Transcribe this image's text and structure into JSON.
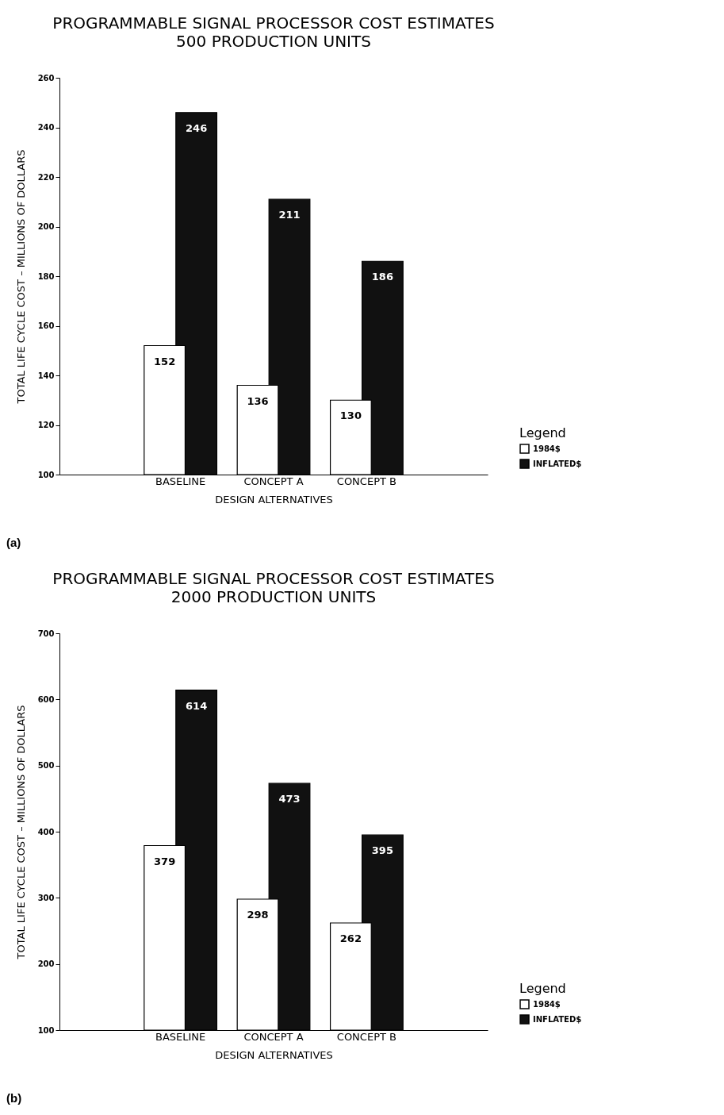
{
  "chart_data": [
    {
      "type": "bar",
      "title": "PROGRAMMABLE SIGNAL PROCESSOR COST ESTIMATES",
      "subtitle": "500 PRODUCTION UNITS",
      "xlabel": "DESIGN ALTERNATIVES",
      "ylabel": "TOTAL LIFE CYCLE COST – MILLIONS OF DOLLARS",
      "legend_title": "Legend",
      "annotations": [
        "(a)"
      ],
      "categories": [
        "BASELINE",
        "CONCEPT A",
        "CONCEPT B"
      ],
      "series": [
        {
          "name": "1984$",
          "color": "#ffffff",
          "values": [
            152,
            136,
            130
          ]
        },
        {
          "name": "INFLATED$",
          "color": "#111111",
          "values": [
            246,
            211,
            186
          ]
        }
      ],
      "ylim": [
        100,
        260
      ],
      "yticks": [
        100,
        120,
        140,
        160,
        180,
        200,
        220,
        240,
        260
      ],
      "data_labels": true,
      "legend": "bottom right"
    },
    {
      "type": "bar",
      "title": "PROGRAMMABLE SIGNAL PROCESSOR COST ESTIMATES",
      "subtitle": "2000 PRODUCTION UNITS",
      "xlabel": "DESIGN ALTERNATIVES",
      "ylabel": "TOTAL LIFE CYCLE COST – MILLIONS OF DOLLARS",
      "legend_title": "Legend",
      "annotations": [
        "(b)"
      ],
      "categories": [
        "BASELINE",
        "CONCEPT A",
        "CONCEPT B"
      ],
      "series": [
        {
          "name": "1984$",
          "color": "#ffffff",
          "values": [
            379,
            298,
            262
          ]
        },
        {
          "name": "INFLATED$",
          "color": "#111111",
          "values": [
            614,
            473,
            395
          ]
        }
      ],
      "ylim": [
        100,
        700
      ],
      "yticks": [
        100,
        200,
        300,
        400,
        500,
        600,
        700
      ],
      "data_labels": true,
      "legend": "bottom right"
    }
  ]
}
